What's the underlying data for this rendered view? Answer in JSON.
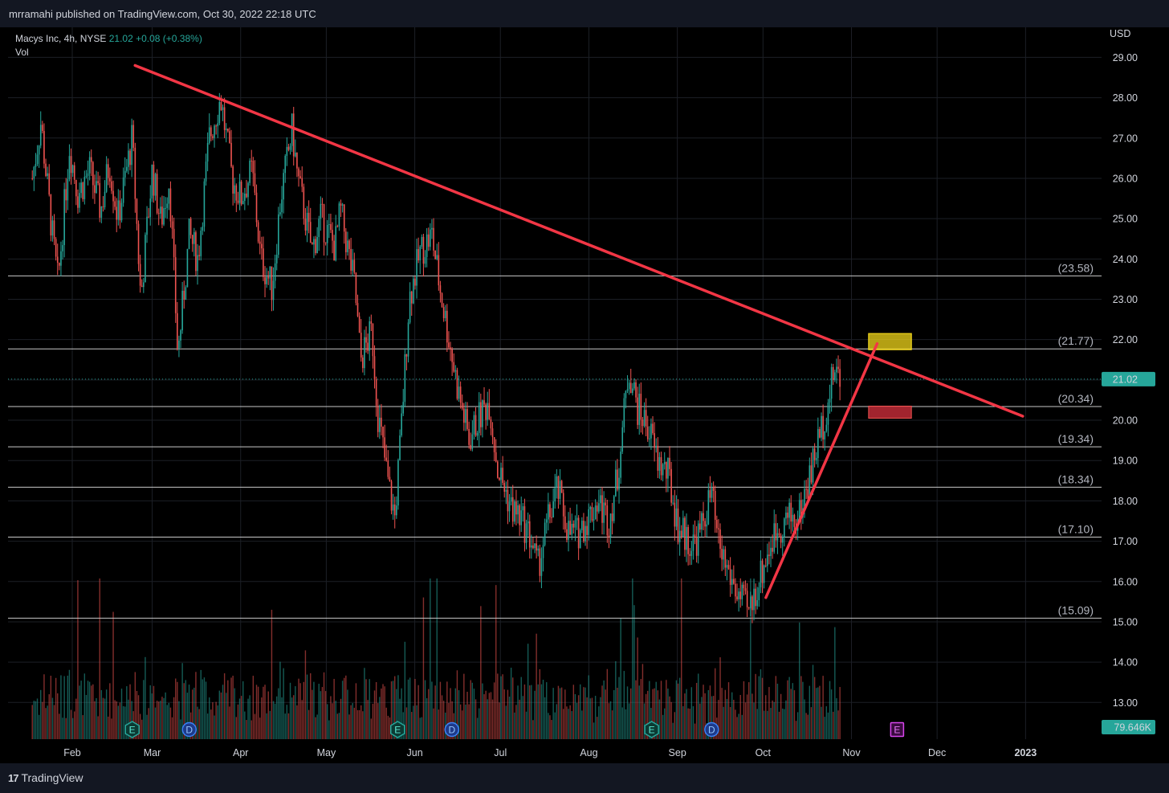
{
  "header": {
    "published": "mrramahi published on TradingView.com, Oct 30, 2022 22:18 UTC"
  },
  "footer": {
    "brand": "TradingView",
    "logo_mark": "17"
  },
  "legend": {
    "symbol": "Macys Inc, 4h, NYSE",
    "price": "21.02",
    "change": "+0.08 (+0.38%)",
    "vol_label": "Vol"
  },
  "colors": {
    "up": "#26a69a",
    "down": "#ef5350",
    "trendline": "#f23645",
    "grid": "#1c1f26",
    "highlight": "#f0d61a"
  },
  "chart_data": {
    "type": "candlestick",
    "currency": "USD",
    "ylim": [
      12.3,
      29.7
    ],
    "y_ticks": [
      "29.00",
      "28.00",
      "27.00",
      "26.00",
      "25.00",
      "24.00",
      "23.00",
      "22.00",
      "21.00",
      "20.00",
      "19.00",
      "18.00",
      "17.00",
      "16.00",
      "15.00",
      "14.00",
      "13.00"
    ],
    "x_ticks": [
      "Feb",
      "Mar",
      "Apr",
      "May",
      "Jun",
      "Jul",
      "Aug",
      "Sep",
      "Oct",
      "Nov",
      "Dec",
      "2023"
    ],
    "last_price": {
      "value": 21.02,
      "label": "21.02"
    },
    "last_volume": "79.646K",
    "levels": [
      {
        "value": 23.58,
        "label": "(23.58)"
      },
      {
        "value": 21.77,
        "label": "(21.77)"
      },
      {
        "value": 20.34,
        "label": "(20.34)"
      },
      {
        "value": 19.34,
        "label": "(19.34)"
      },
      {
        "value": 18.34,
        "label": "(18.34)"
      },
      {
        "value": 17.1,
        "label": "(17.10)"
      },
      {
        "value": 15.09,
        "label": "(15.09)"
      }
    ],
    "trendlines": [
      {
        "name": "descending resistance",
        "from": {
          "date": "2022-02-23",
          "price": 28.8
        },
        "to": {
          "date": "2022-12-31",
          "price": 20.1
        }
      },
      {
        "name": "ascending support",
        "from": {
          "date": "2022-10-02",
          "price": 15.6
        },
        "to": {
          "date": "2022-11-10",
          "price": 21.9
        }
      }
    ],
    "zones": [
      {
        "color": "yellow",
        "from_date": "2022-11-07",
        "to_date": "2022-11-22",
        "top": 22.15,
        "bottom": 21.75
      },
      {
        "color": "red",
        "from_date": "2022-11-07",
        "to_date": "2022-11-22",
        "top": 20.35,
        "bottom": 20.05
      }
    ],
    "markers": [
      {
        "label": "E",
        "type": "earnings",
        "date": "2022-02-22"
      },
      {
        "label": "D",
        "type": "dividend",
        "date": "2022-03-14"
      },
      {
        "label": "E",
        "type": "earnings",
        "date": "2022-05-26"
      },
      {
        "label": "D",
        "type": "dividend",
        "date": "2022-06-14"
      },
      {
        "label": "E",
        "type": "earnings",
        "date": "2022-08-23"
      },
      {
        "label": "D",
        "type": "dividend",
        "date": "2022-09-13"
      },
      {
        "label": "E",
        "type": "earnings_upcoming",
        "date": "2022-11-17"
      }
    ],
    "price_path": [
      [
        "2022-01-18",
        26.0
      ],
      [
        "2022-01-21",
        27.4
      ],
      [
        "2022-01-25",
        24.6
      ],
      [
        "2022-01-27",
        23.4
      ],
      [
        "2022-01-31",
        26.8
      ],
      [
        "2022-02-03",
        25.6
      ],
      [
        "2022-02-07",
        26.2
      ],
      [
        "2022-02-11",
        25.2
      ],
      [
        "2022-02-14",
        26.4
      ],
      [
        "2022-02-17",
        25.0
      ],
      [
        "2022-02-22",
        27.0
      ],
      [
        "2022-02-25",
        23.0
      ],
      [
        "2022-03-01",
        26.2
      ],
      [
        "2022-03-04",
        24.9
      ],
      [
        "2022-03-07",
        26.0
      ],
      [
        "2022-03-10",
        21.6
      ],
      [
        "2022-03-14",
        24.6
      ],
      [
        "2022-03-17",
        24.0
      ],
      [
        "2022-03-21",
        27.0
      ],
      [
        "2022-03-25",
        28.0
      ],
      [
        "2022-03-29",
        26.0
      ],
      [
        "2022-04-01",
        25.5
      ],
      [
        "2022-04-05",
        26.2
      ],
      [
        "2022-04-08",
        24.0
      ],
      [
        "2022-04-12",
        23.3
      ],
      [
        "2022-04-15",
        25.5
      ],
      [
        "2022-04-19",
        27.2
      ],
      [
        "2022-04-21",
        26.0
      ],
      [
        "2022-04-26",
        24.2
      ],
      [
        "2022-04-29",
        25.0
      ],
      [
        "2022-05-04",
        24.3
      ],
      [
        "2022-05-06",
        25.2
      ],
      [
        "2022-05-11",
        23.3
      ],
      [
        "2022-05-13",
        21.5
      ],
      [
        "2022-05-17",
        22.2
      ],
      [
        "2022-05-19",
        20.2
      ],
      [
        "2022-05-23",
        18.3
      ],
      [
        "2022-05-25",
        17.6
      ],
      [
        "2022-05-27",
        19.5
      ],
      [
        "2022-05-30",
        23.0
      ],
      [
        "2022-06-03",
        24.2
      ],
      [
        "2022-06-07",
        24.6
      ],
      [
        "2022-06-10",
        23.2
      ],
      [
        "2022-06-14",
        21.6
      ],
      [
        "2022-06-16",
        20.8
      ],
      [
        "2022-06-20",
        19.5
      ],
      [
        "2022-06-23",
        20.0
      ],
      [
        "2022-06-27",
        20.5
      ],
      [
        "2022-06-30",
        18.8
      ],
      [
        "2022-07-05",
        17.8
      ],
      [
        "2022-07-08",
        17.6
      ],
      [
        "2022-07-12",
        17.0
      ],
      [
        "2022-07-14",
        16.3
      ],
      [
        "2022-07-18",
        17.6
      ],
      [
        "2022-07-21",
        18.3
      ],
      [
        "2022-07-25",
        17.2
      ],
      [
        "2022-07-28",
        17.2
      ],
      [
        "2022-08-01",
        17.6
      ],
      [
        "2022-08-04",
        18.0
      ],
      [
        "2022-08-08",
        17.5
      ],
      [
        "2022-08-11",
        18.6
      ],
      [
        "2022-08-15",
        21.3
      ],
      [
        "2022-08-18",
        20.3
      ],
      [
        "2022-08-22",
        19.8
      ],
      [
        "2022-08-25",
        19.0
      ],
      [
        "2022-08-29",
        18.6
      ],
      [
        "2022-09-01",
        17.4
      ],
      [
        "2022-09-06",
        16.9
      ],
      [
        "2022-09-09",
        17.2
      ],
      [
        "2022-09-13",
        18.2
      ],
      [
        "2022-09-15",
        17.0
      ],
      [
        "2022-09-19",
        16.2
      ],
      [
        "2022-09-22",
        15.7
      ],
      [
        "2022-09-26",
        15.2
      ],
      [
        "2022-09-29",
        15.9
      ],
      [
        "2022-10-03",
        16.8
      ],
      [
        "2022-10-06",
        17.3
      ],
      [
        "2022-10-10",
        17.6
      ],
      [
        "2022-10-13",
        17.5
      ],
      [
        "2022-10-17",
        18.5
      ],
      [
        "2022-10-20",
        19.4
      ],
      [
        "2022-10-24",
        20.5
      ],
      [
        "2022-10-26",
        21.3
      ],
      [
        "2022-10-28",
        21.02
      ]
    ]
  }
}
